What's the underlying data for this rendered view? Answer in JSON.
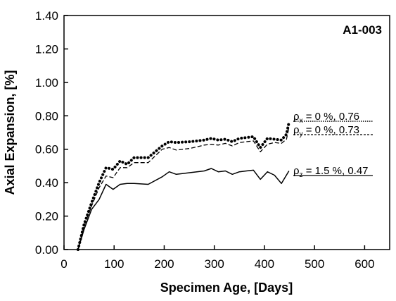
{
  "chart_data": {
    "type": "line",
    "panel_label": "A1-003",
    "title": "",
    "xlabel": "Specimen Age, [Days]",
    "ylabel": "Axial Expansion, [%]",
    "xlim": [
      0,
      650
    ],
    "ylim": [
      0,
      1.4
    ],
    "x_ticks": [
      "0",
      "100",
      "200",
      "300",
      "400",
      "500",
      "600"
    ],
    "y_ticks": [
      "0.00",
      "0.20",
      "0.40",
      "0.60",
      "0.80",
      "1.00",
      "1.20",
      "1.40"
    ],
    "grid": false,
    "series": [
      {
        "style": "dotted",
        "color": "#000000",
        "x": [
          28,
          40,
          55,
          70,
          84,
          98,
          112,
          126,
          140,
          168,
          196,
          210,
          224,
          252,
          280,
          294,
          308,
          322,
          336,
          350,
          364,
          378,
          392,
          406,
          420,
          434,
          444,
          449
        ],
        "y": [
          0.0,
          0.15,
          0.28,
          0.4,
          0.49,
          0.48,
          0.53,
          0.51,
          0.55,
          0.55,
          0.62,
          0.645,
          0.64,
          0.645,
          0.655,
          0.665,
          0.655,
          0.66,
          0.645,
          0.665,
          0.67,
          0.675,
          0.61,
          0.665,
          0.66,
          0.655,
          0.69,
          0.76
        ]
      },
      {
        "style": "dashed",
        "color": "#000000",
        "x": [
          28,
          40,
          55,
          70,
          84,
          98,
          112,
          126,
          140,
          168,
          196,
          210,
          224,
          252,
          280,
          294,
          308,
          322,
          336,
          350,
          364,
          378,
          392,
          406,
          420,
          434,
          444,
          449
        ],
        "y": [
          0.0,
          0.14,
          0.26,
          0.37,
          0.44,
          0.43,
          0.49,
          0.49,
          0.52,
          0.52,
          0.6,
          0.61,
          0.595,
          0.605,
          0.625,
          0.63,
          0.625,
          0.635,
          0.62,
          0.64,
          0.645,
          0.65,
          0.585,
          0.63,
          0.64,
          0.635,
          0.66,
          0.73
        ]
      },
      {
        "style": "solid",
        "color": "#000000",
        "x": [
          28,
          40,
          55,
          70,
          84,
          98,
          112,
          126,
          140,
          168,
          196,
          210,
          224,
          252,
          280,
          294,
          308,
          322,
          336,
          350,
          364,
          378,
          392,
          406,
          420,
          434,
          449
        ],
        "y": [
          0.0,
          0.12,
          0.24,
          0.3,
          0.39,
          0.36,
          0.39,
          0.395,
          0.395,
          0.39,
          0.435,
          0.465,
          0.45,
          0.46,
          0.47,
          0.485,
          0.465,
          0.47,
          0.45,
          0.465,
          0.47,
          0.475,
          0.42,
          0.465,
          0.445,
          0.395,
          0.47
        ]
      }
    ],
    "annotations": [
      {
        "prefix": "ρ",
        "sub": "x",
        "text": " = 0 %,  0.76",
        "style": "dotted"
      },
      {
        "prefix": "ρ",
        "sub": "y",
        "text": " = 0 %,  0.73",
        "style": "dashed"
      },
      {
        "prefix": "ρ",
        "sub": "z",
        "text": " = 1.5 %,  0.47",
        "style": "solid"
      }
    ]
  }
}
